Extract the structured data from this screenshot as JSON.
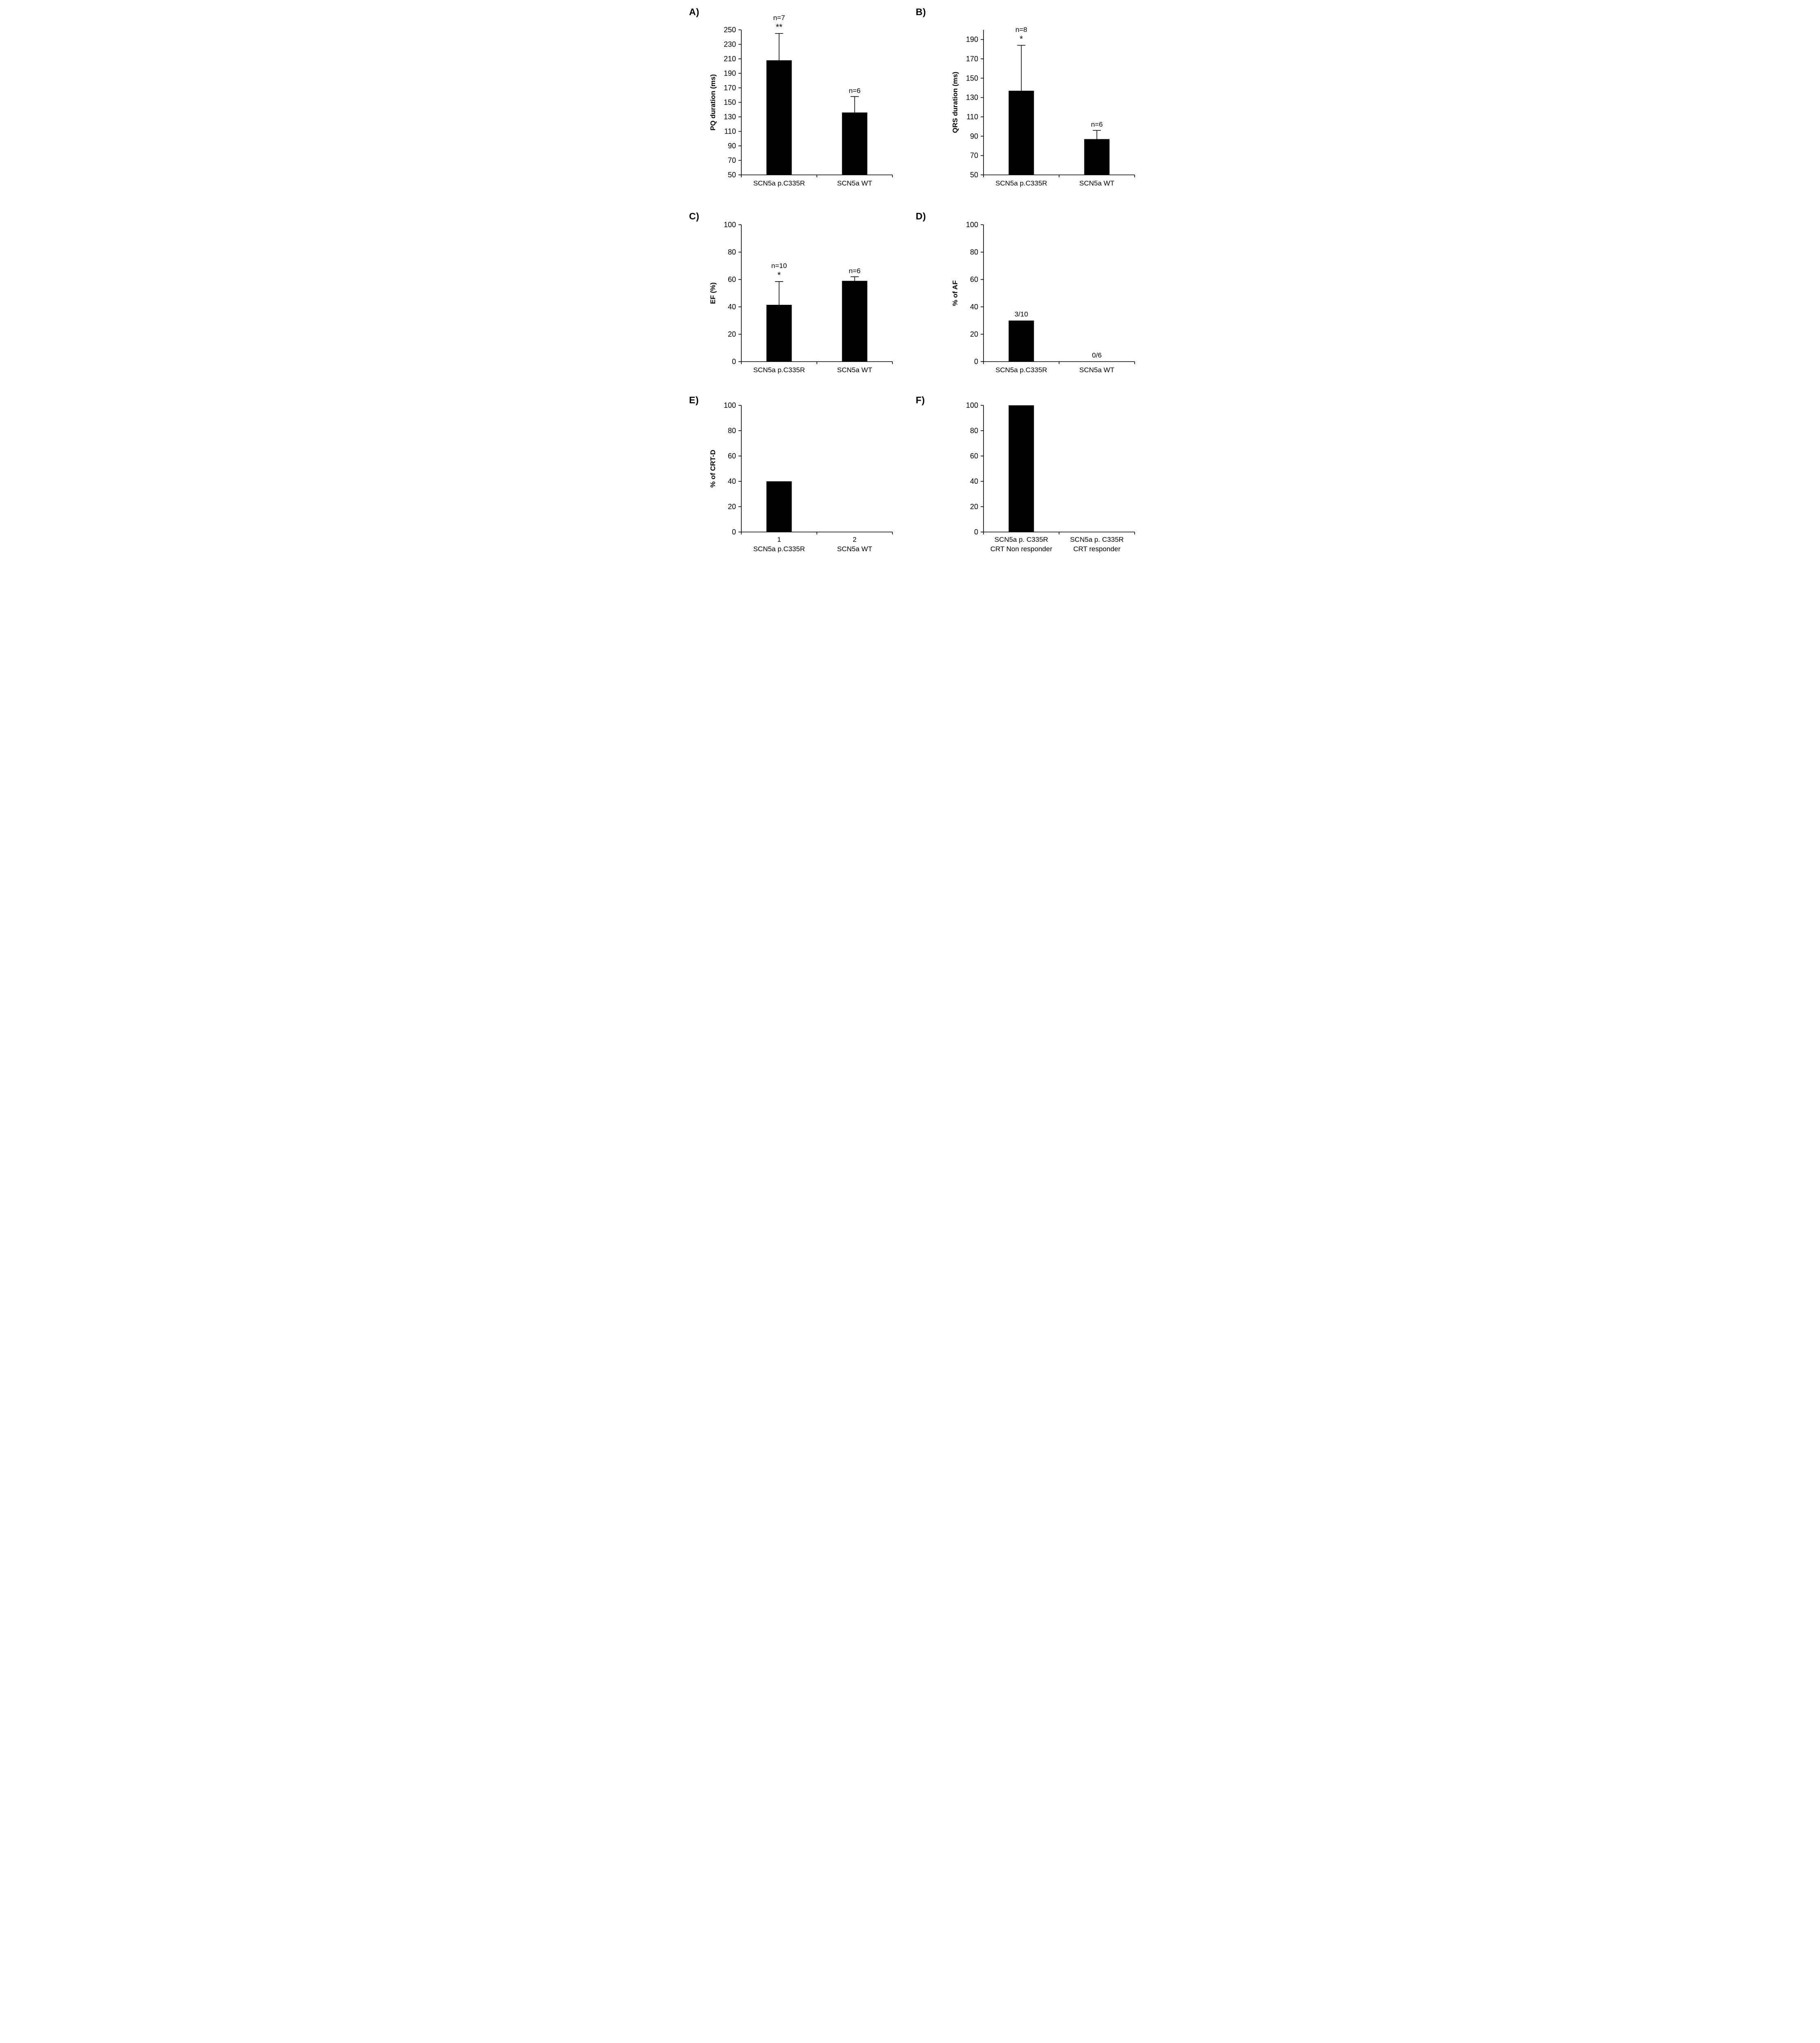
{
  "figure": {
    "background": "#ffffff",
    "bar_color": "#000000",
    "axis_color": "#000000",
    "text_color": "#000000"
  },
  "chart_data": [
    {
      "panel_label": "A)",
      "type": "bar",
      "title": "",
      "xlabel": "",
      "ylabel": "PQ duration (ms)",
      "ylim": [
        50,
        250
      ],
      "yticks": [
        50,
        70,
        90,
        110,
        130,
        150,
        170,
        190,
        210,
        230,
        250
      ],
      "grid": false,
      "legend": false,
      "categories": [
        "SCN5a p.C335R",
        "SCN5a WT"
      ],
      "values": [
        208,
        136
      ],
      "errors_plus": [
        37,
        22
      ],
      "bar_annotations": [
        [
          "n=7",
          "**"
        ],
        [
          "n=6"
        ]
      ],
      "annotation_serif": true,
      "bar_color": "#000000"
    },
    {
      "panel_label": "B)",
      "type": "bar",
      "title": "",
      "xlabel": "",
      "ylabel": "QRS duration (ms)",
      "ylim": [
        50,
        200
      ],
      "yticks": [
        50,
        70,
        90,
        110,
        130,
        150,
        170,
        190
      ],
      "grid": false,
      "legend": false,
      "categories": [
        "SCN5a p.C335R",
        "SCN5a WT"
      ],
      "values": [
        137,
        87
      ],
      "errors_plus": [
        47,
        9
      ],
      "bar_annotations": [
        [
          "n=8",
          "*"
        ],
        [
          "n=6"
        ]
      ],
      "annotation_serif": true,
      "bar_color": "#000000"
    },
    {
      "panel_label": "C)",
      "type": "bar",
      "title": "",
      "xlabel": "",
      "ylabel": "EF (%)",
      "ylim": [
        0,
        100
      ],
      "yticks": [
        0,
        20,
        40,
        60,
        80,
        100
      ],
      "grid": false,
      "legend": false,
      "categories": [
        "SCN5a p.C335R",
        "SCN5a WT"
      ],
      "values": [
        41.5,
        59
      ],
      "errors_plus": [
        17,
        3
      ],
      "bar_annotations": [
        [
          "n=10",
          "*"
        ],
        [
          "n=6"
        ]
      ],
      "annotation_serif": true,
      "bar_color": "#000000"
    },
    {
      "panel_label": "D)",
      "type": "bar",
      "title": "",
      "xlabel": "",
      "ylabel": "% of AF",
      "ylim": [
        0,
        100
      ],
      "yticks": [
        0,
        20,
        40,
        60,
        80,
        100
      ],
      "grid": false,
      "legend": false,
      "categories": [
        "SCN5a p.C335R",
        "SCN5a WT"
      ],
      "values": [
        30,
        0
      ],
      "errors_plus": [
        0,
        0
      ],
      "bar_annotations": [
        [
          "3/10"
        ],
        [
          "0/6"
        ]
      ],
      "annotation_serif": false,
      "bar_color": "#000000"
    },
    {
      "panel_label": "E)",
      "type": "bar",
      "title": "",
      "xlabel": "",
      "ylabel": "% of CRT-D",
      "ylim": [
        0,
        100
      ],
      "yticks": [
        0,
        20,
        40,
        60,
        80,
        100
      ],
      "grid": false,
      "legend": false,
      "categories": [
        "1\nSCN5a p.C335R",
        "2\nSCN5a WT"
      ],
      "values": [
        40,
        0
      ],
      "errors_plus": [
        0,
        0
      ],
      "bar_annotations": [
        [],
        []
      ],
      "annotation_serif": false,
      "bar_color": "#000000"
    },
    {
      "panel_label": "F)",
      "type": "bar",
      "title": "",
      "xlabel": "",
      "ylabel": "",
      "ylim": [
        0,
        100
      ],
      "yticks": [
        0,
        20,
        40,
        60,
        80,
        100
      ],
      "grid": false,
      "legend": false,
      "categories": [
        "SCN5a p. C335R\nCRT Non responder",
        "SCN5a p. C335R\nCRT responder"
      ],
      "values": [
        100,
        0
      ],
      "errors_plus": [
        0,
        0
      ],
      "bar_annotations": [
        [],
        []
      ],
      "annotation_serif": false,
      "bar_color": "#000000"
    }
  ]
}
